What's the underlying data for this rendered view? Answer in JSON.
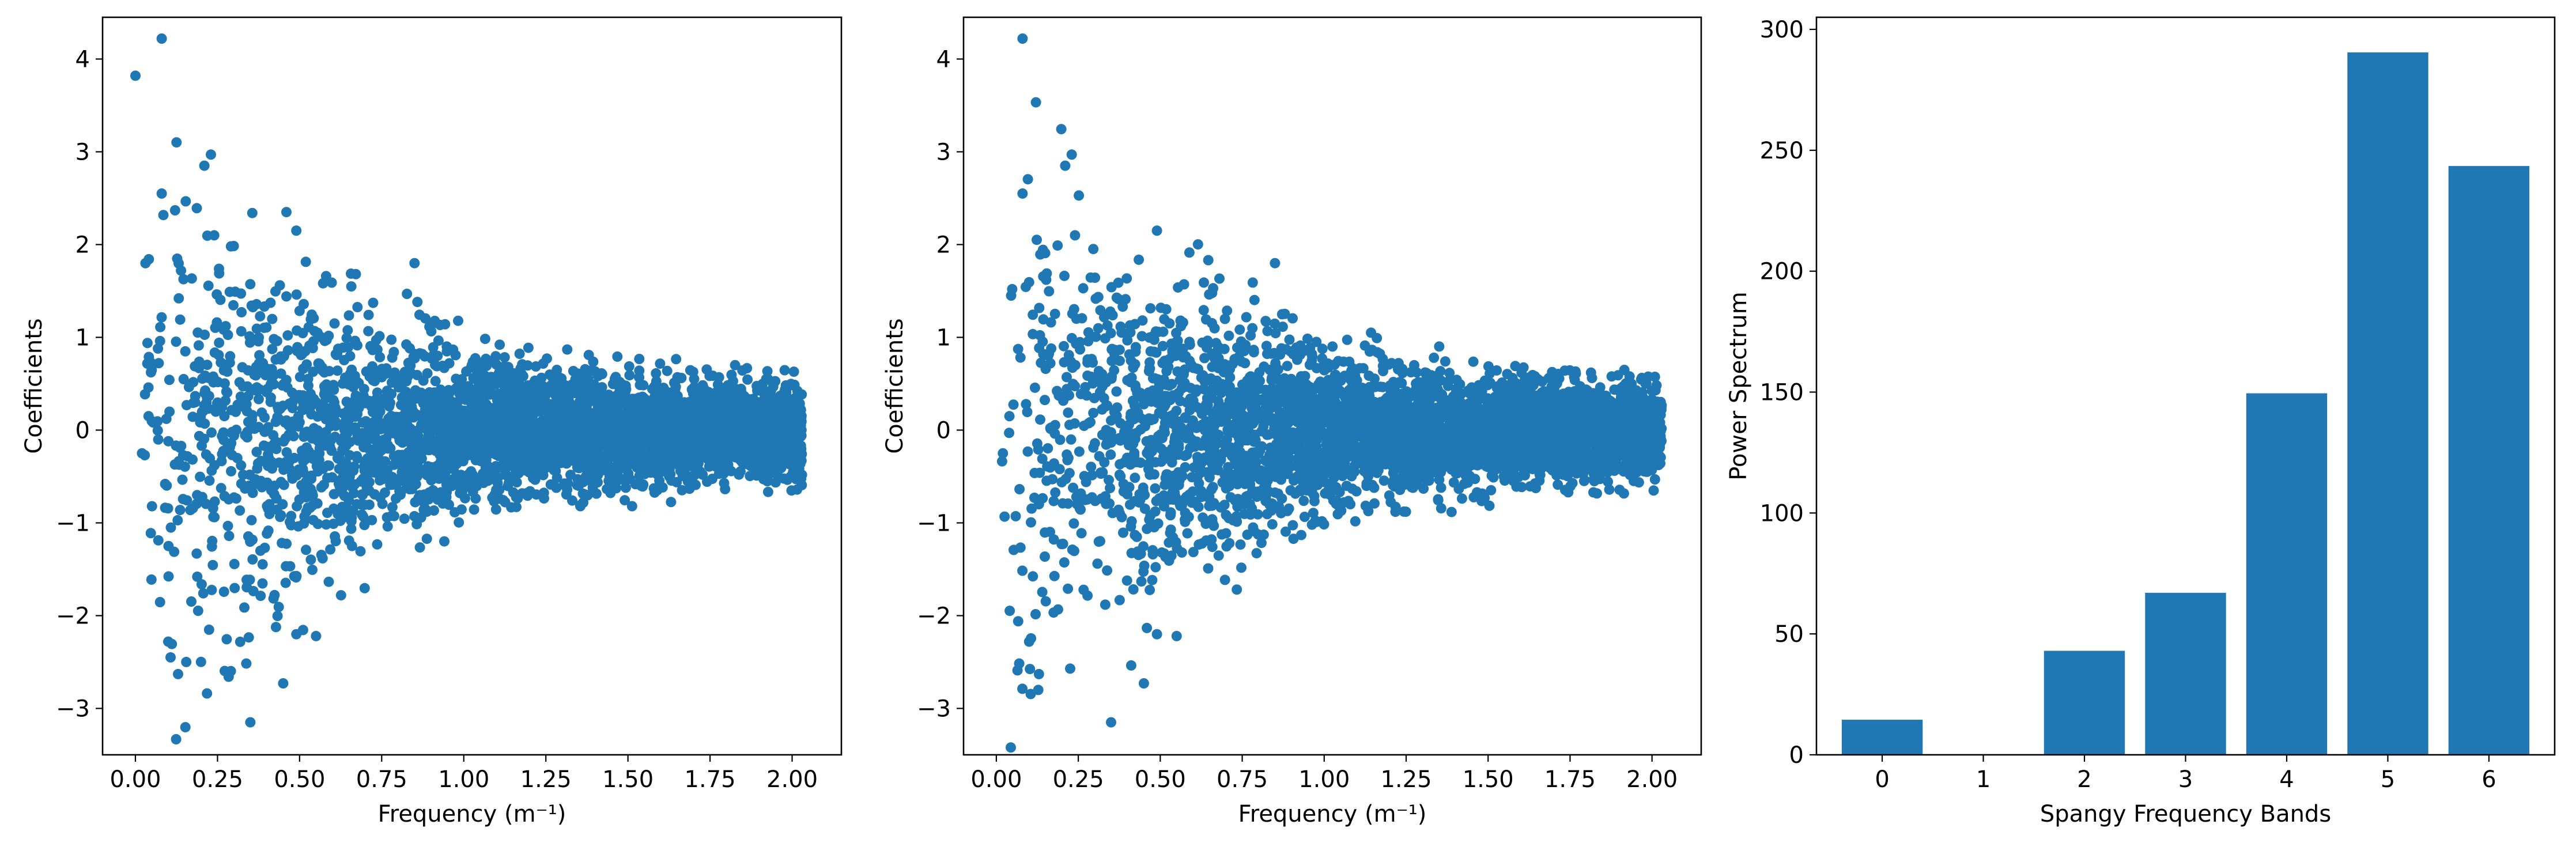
{
  "chart_data": [
    {
      "type": "scatter",
      "panel": "left",
      "xlabel": "Frequency (m⁻¹)",
      "ylabel": "Coefficients",
      "xlim": [
        -0.1,
        2.15
      ],
      "ylim": [
        -3.5,
        4.45
      ],
      "xticks": [
        0.0,
        0.25,
        0.5,
        0.75,
        1.0,
        1.25,
        1.5,
        1.75,
        2.0
      ],
      "xtick_labels": [
        "0.00",
        "0.25",
        "0.50",
        "0.75",
        "1.00",
        "1.25",
        "1.50",
        "1.75",
        "2.00"
      ],
      "yticks": [
        -3,
        -2,
        -1,
        0,
        1,
        2,
        3,
        4
      ],
      "ytick_labels": [
        "−3",
        "−2",
        "−1",
        "0",
        "1",
        "2",
        "3",
        "4"
      ],
      "grid": false,
      "color": "#1f77b4",
      "x_range": [
        0.0,
        2.03
      ],
      "n_points_approx": 4000,
      "notable_points": [
        {
          "x": 0.0,
          "y": 3.82
        },
        {
          "x": 0.08,
          "y": 4.22
        },
        {
          "x": 0.08,
          "y": 2.55
        },
        {
          "x": 0.21,
          "y": 2.85
        },
        {
          "x": 0.23,
          "y": 2.97
        },
        {
          "x": 0.24,
          "y": 2.1
        },
        {
          "x": 0.49,
          "y": 2.15
        },
        {
          "x": 0.1,
          "y": -2.28
        },
        {
          "x": 0.13,
          "y": -2.63
        },
        {
          "x": 0.35,
          "y": -3.15
        },
        {
          "x": 0.45,
          "y": -2.73
        },
        {
          "x": 0.49,
          "y": -2.2
        },
        {
          "x": 0.55,
          "y": -2.22
        },
        {
          "x": 0.85,
          "y": 1.8
        },
        {
          "x": 0.02,
          "y": -0.25
        },
        {
          "x": 0.04,
          "y": 0.15
        }
      ],
      "envelope_abs_y": [
        [
          0.0,
          4.2
        ],
        [
          0.25,
          3.0
        ],
        [
          0.5,
          2.2
        ],
        [
          0.75,
          1.6
        ],
        [
          1.0,
          1.15
        ],
        [
          1.25,
          0.95
        ],
        [
          1.5,
          0.8
        ],
        [
          1.75,
          0.7
        ],
        [
          2.03,
          0.65
        ]
      ]
    },
    {
      "type": "scatter",
      "panel": "middle",
      "xlabel": "Frequency (m⁻¹)",
      "ylabel": "Coefficients",
      "xlim": [
        -0.1,
        2.15
      ],
      "ylim": [
        -3.5,
        4.45
      ],
      "xticks": [
        0.0,
        0.25,
        0.5,
        0.75,
        1.0,
        1.25,
        1.5,
        1.75,
        2.0
      ],
      "xtick_labels": [
        "0.00",
        "0.25",
        "0.50",
        "0.75",
        "1.00",
        "1.25",
        "1.50",
        "1.75",
        "2.00"
      ],
      "yticks": [
        -3,
        -2,
        -1,
        0,
        1,
        2,
        3,
        4
      ],
      "ytick_labels": [
        "−3",
        "−2",
        "−1",
        "0",
        "1",
        "2",
        "3",
        "4"
      ],
      "grid": false,
      "color": "#1f77b4",
      "x_range": [
        0.0,
        2.03
      ],
      "n_points_approx": 4000,
      "notable_points": [
        {
          "x": 0.08,
          "y": 4.22
        },
        {
          "x": 0.08,
          "y": 2.55
        },
        {
          "x": 0.21,
          "y": 2.85
        },
        {
          "x": 0.23,
          "y": 2.97
        },
        {
          "x": 0.24,
          "y": 2.1
        },
        {
          "x": 0.49,
          "y": 2.15
        },
        {
          "x": 0.1,
          "y": -2.28
        },
        {
          "x": 0.13,
          "y": -2.63
        },
        {
          "x": 0.35,
          "y": -3.15
        },
        {
          "x": 0.45,
          "y": -2.73
        },
        {
          "x": 0.49,
          "y": -2.2
        },
        {
          "x": 0.55,
          "y": -2.22
        },
        {
          "x": 0.85,
          "y": 1.8
        },
        {
          "x": 0.02,
          "y": -0.25
        },
        {
          "x": 0.04,
          "y": 0.15
        }
      ],
      "envelope_abs_y": [
        [
          0.0,
          4.2
        ],
        [
          0.25,
          3.0
        ],
        [
          0.5,
          2.2
        ],
        [
          0.75,
          1.6
        ],
        [
          1.0,
          1.15
        ],
        [
          1.25,
          0.95
        ],
        [
          1.5,
          0.8
        ],
        [
          1.75,
          0.7
        ],
        [
          2.03,
          0.65
        ]
      ]
    },
    {
      "type": "bar",
      "panel": "right",
      "xlabel": "Spangy Frequency Bands",
      "ylabel": "Power Spectrum",
      "categories": [
        "0",
        "1",
        "2",
        "3",
        "4",
        "5",
        "6"
      ],
      "values": [
        14.5,
        0,
        43,
        67,
        149.5,
        290.5,
        243.5
      ],
      "xlim": [
        -0.65,
        6.65
      ],
      "ylim": [
        0,
        305
      ],
      "yticks": [
        0,
        50,
        100,
        150,
        200,
        250,
        300
      ],
      "ytick_labels": [
        "0",
        "50",
        "100",
        "150",
        "200",
        "250",
        "300"
      ],
      "bar_width": 0.8,
      "grid": false,
      "color": "#1f77b4"
    }
  ]
}
